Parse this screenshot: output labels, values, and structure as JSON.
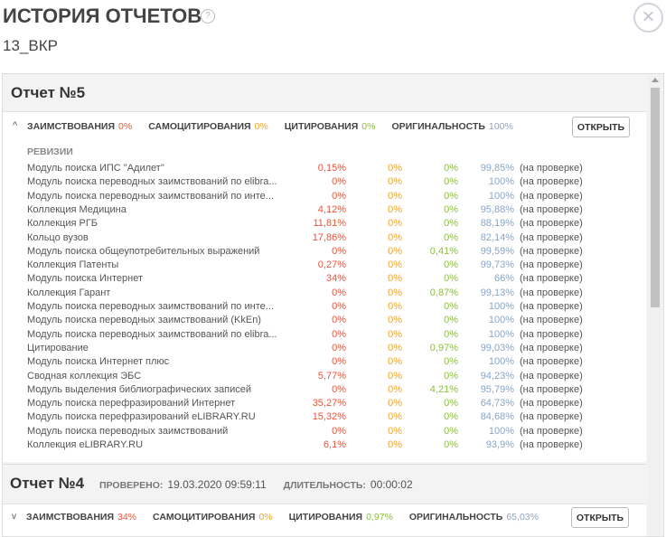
{
  "header": {
    "title": "ИСТОРИЯ ОТЧЕТОВ",
    "subtitle": "13_ВКР"
  },
  "reports": [
    {
      "title": "Отчет №5",
      "summary": [
        {
          "label": "ЗАИМСТВОВАНИЯ",
          "value": "0%"
        },
        {
          "label": "САМОЦИТИРОВАНИЯ",
          "value": "0%"
        },
        {
          "label": "ЦИТИРОВАНИЯ",
          "value": "0%"
        },
        {
          "label": "ОРИГИНАЛЬНОСТЬ",
          "value": "100%"
        }
      ],
      "button": "ОТКРЫТЬ",
      "revisions_title": "РЕВИЗИИ",
      "revisions": [
        [
          "Модуль поиска ИПС \"Адилет\"",
          "0,15%",
          "0%",
          "0%",
          "99,85%",
          "(на проверке)"
        ],
        [
          "Модуль поиска переводных заимствований по elibra...",
          "0%",
          "0%",
          "0%",
          "100%",
          "(на проверке)"
        ],
        [
          "Модуль поиска переводных заимствований по инте...",
          "0%",
          "0%",
          "0%",
          "100%",
          "(на проверке)"
        ],
        [
          "Коллекция Медицина",
          "4,12%",
          "0%",
          "0%",
          "95,88%",
          "(на проверке)"
        ],
        [
          "Коллекция РГБ",
          "11,81%",
          "0%",
          "0%",
          "88,19%",
          "(на проверке)"
        ],
        [
          "Кольцо вузов",
          "17,86%",
          "0%",
          "0%",
          "82,14%",
          "(на проверке)"
        ],
        [
          "Модуль поиска общеупотребительных выражений",
          "0%",
          "0%",
          "0,41%",
          "99,59%",
          "(на проверке)"
        ],
        [
          "Коллекция Патенты",
          "0,27%",
          "0%",
          "0%",
          "99,73%",
          "(на проверке)"
        ],
        [
          "Модуль поиска Интернет",
          "34%",
          "0%",
          "0%",
          "66%",
          "(на проверке)"
        ],
        [
          "Коллекция Гарант",
          "0%",
          "0%",
          "0,87%",
          "99,13%",
          "(на проверке)"
        ],
        [
          "Модуль поиска переводных заимствований по инте...",
          "0%",
          "0%",
          "0%",
          "100%",
          "(на проверке)"
        ],
        [
          "Модуль поиска переводных заимствований (KkEn)",
          "0%",
          "0%",
          "0%",
          "100%",
          "(на проверке)"
        ],
        [
          "Модуль поиска переводных заимствований по elibra...",
          "0%",
          "0%",
          "0%",
          "100%",
          "(на проверке)"
        ],
        [
          "Цитирование",
          "0%",
          "0%",
          "0,97%",
          "99,03%",
          "(на проверке)"
        ],
        [
          "Модуль поиска Интернет плюс",
          "0%",
          "0%",
          "0%",
          "100%",
          "(на проверке)"
        ],
        [
          "Сводная коллекция ЭБС",
          "5,77%",
          "0%",
          "0%",
          "94,23%",
          "(на проверке)"
        ],
        [
          "Модуль выделения библиографических записей",
          "0%",
          "0%",
          "4,21%",
          "95,79%",
          "(на проверке)"
        ],
        [
          "Модуль поиска перефразирований Интернет",
          "35,27%",
          "0%",
          "0%",
          "64,73%",
          "(на проверке)"
        ],
        [
          "Модуль поиска перефразирований eLIBRARY.RU",
          "15,32%",
          "0%",
          "0%",
          "84,68%",
          "(на проверке)"
        ],
        [
          "Модуль поиска переводных заимствований",
          "0%",
          "0%",
          "0%",
          "100%",
          "(на проверке)"
        ],
        [
          "Коллекция eLIBRARY.RU",
          "6,1%",
          "0%",
          "0%",
          "93,9%",
          "(на проверке)"
        ]
      ]
    },
    {
      "title": "Отчет №4",
      "checked_label": "ПРОВЕРЕНО:",
      "checked": "19.03.2020 09:59:11",
      "duration_label": "ДЛИТЕЛЬНОСТЬ:",
      "duration": "00:00:02",
      "summary": [
        {
          "label": "ЗАИМСТВОВАНИЯ",
          "value": "34%"
        },
        {
          "label": "САМОЦИТИРОВАНИЯ",
          "value": "0%"
        },
        {
          "label": "ЦИТИРОВАНИЯ",
          "value": "0,97%"
        },
        {
          "label": "ОРИГИНАЛЬНОСТЬ",
          "value": "65,03%"
        }
      ],
      "button": "ОТКРЫТЬ"
    }
  ]
}
